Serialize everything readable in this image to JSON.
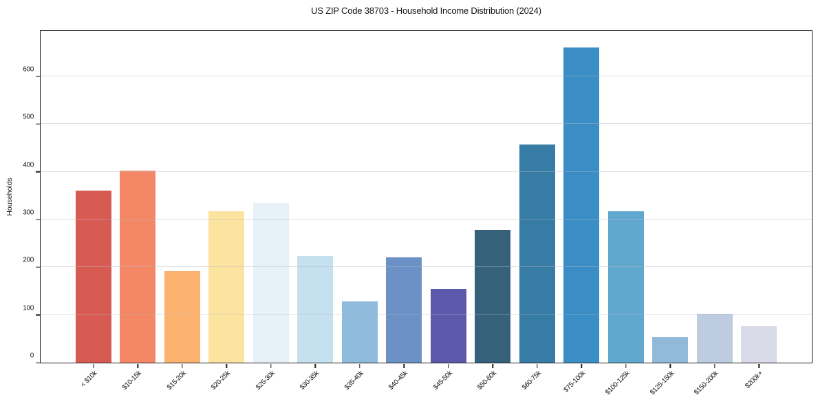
{
  "title": "US ZIP Code 38703 - Household Income Distribution (2024)",
  "chart_data": {
    "type": "bar",
    "title": "US ZIP Code 38703 - Household Income Distribution (2024)",
    "xlabel": "",
    "ylabel": "Households",
    "ylim": [
      0,
      695
    ],
    "yticks": [
      0,
      100,
      200,
      300,
      400,
      500,
      600
    ],
    "grid": true,
    "legend": "none",
    "categories": [
      "< $10k",
      "$10-15k",
      "$15-20k",
      "$20-25k",
      "$25-30k",
      "$30-35k",
      "$35-40k",
      "$40-45k",
      "$45-50k",
      "$50-60k",
      "$60-75k",
      "$75-100k",
      "$100-125k",
      "$125-150k",
      "$150-200k",
      "$200k+"
    ],
    "values": [
      360,
      403,
      192,
      317,
      335,
      224,
      128,
      221,
      154,
      278,
      457,
      660,
      317,
      54,
      103,
      77
    ],
    "bar_colors": [
      "#d75b53",
      "#f48766",
      "#fbb26e",
      "#fde3a0",
      "#e6f2f8",
      "#c5e1ef",
      "#8fbcdc",
      "#6c91c6",
      "#5c59aa",
      "#36617b",
      "#377ca5",
      "#3a8ec5",
      "#61a8ce",
      "#93b9d9",
      "#bdcce1",
      "#d9dbe9"
    ],
    "axis_color": "#1c1c1c",
    "grid_color": "#b8b8c4",
    "background_color": "#ffffff"
  }
}
